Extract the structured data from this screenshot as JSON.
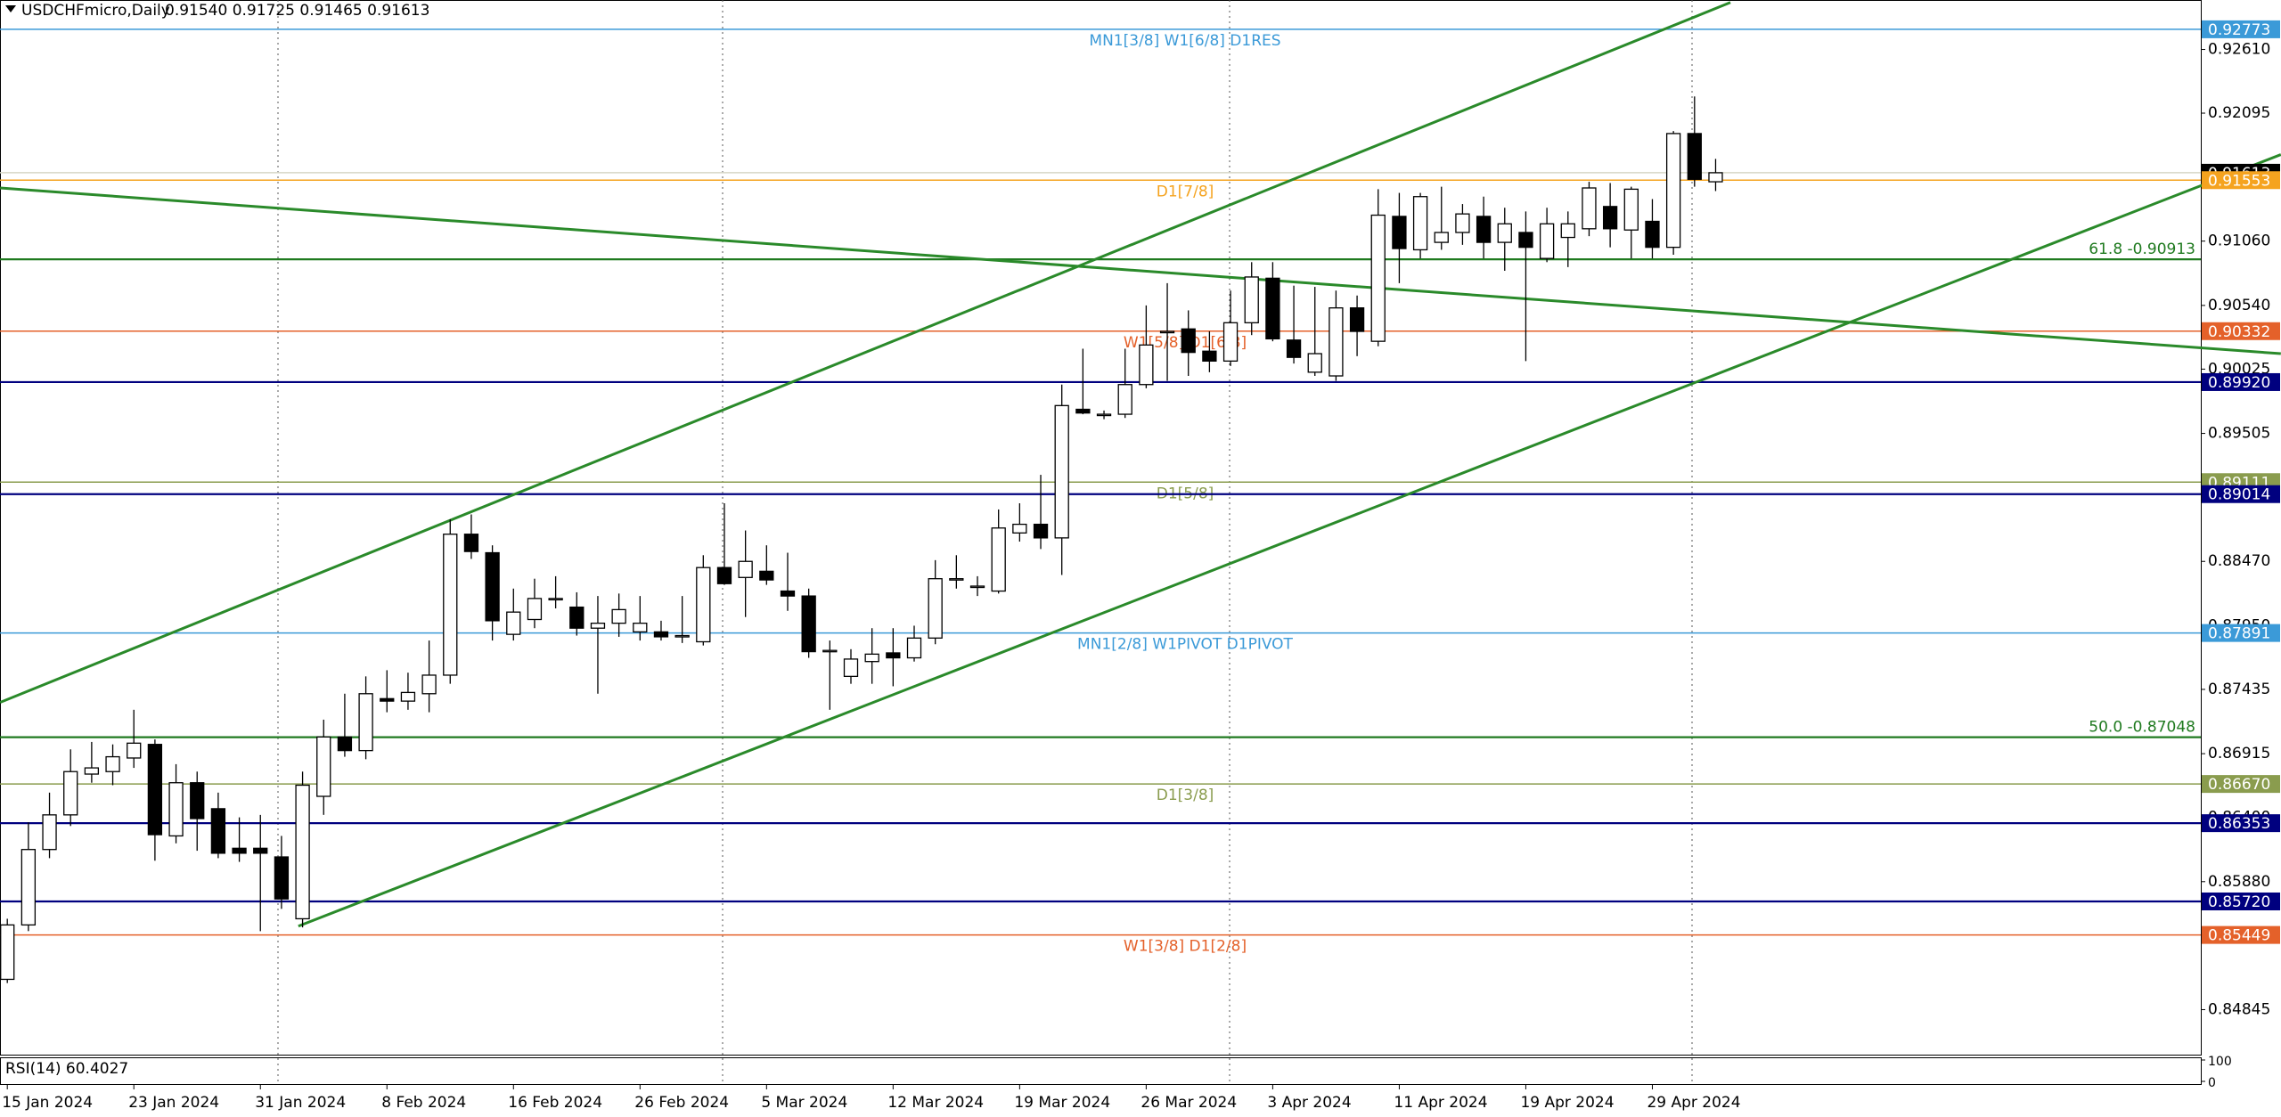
{
  "chart_data": {
    "type": "candlestick",
    "title": "USDCHFmicro,Daily",
    "title_values": "0.91540 0.91725 0.91465 0.91613",
    "categories": [
      "15 Jan 2024",
      null,
      null,
      null,
      null,
      null,
      "23 Jan 2024",
      null,
      null,
      null,
      null,
      null,
      "31 Jan 2024",
      null,
      null,
      null,
      null,
      null,
      "8 Feb 2024",
      null,
      null,
      null,
      null,
      null,
      "16 Feb 2024",
      null,
      null,
      null,
      null,
      null,
      "26 Feb 2024",
      null,
      null,
      null,
      null,
      null,
      "5 Mar 2024",
      null,
      null,
      null,
      null,
      null,
      "12 Mar 2024",
      null,
      null,
      null,
      null,
      null,
      "19 Mar 2024",
      null,
      null,
      null,
      null,
      null,
      "26 Mar 2024",
      null,
      null,
      null,
      null,
      null,
      "3 Apr 2024",
      null,
      null,
      null,
      null,
      null,
      "11 Apr 2024",
      null,
      null,
      null,
      null,
      null,
      "19 Apr 2024",
      null,
      null,
      null,
      null,
      null,
      "29 Apr 2024",
      null,
      null,
      null
    ],
    "open": [
      0.8509,
      0.8553,
      0.8614,
      0.8642,
      0.8675,
      0.8677,
      0.8688,
      0.8699,
      0.8625,
      0.8668,
      0.8647,
      0.8615,
      0.8615,
      0.8608,
      0.8558,
      0.8657,
      0.8705,
      0.8694,
      0.8736,
      0.8734,
      0.874,
      0.8755,
      0.8869,
      0.8854,
      0.8788,
      0.88,
      0.8817,
      0.881,
      0.8793,
      0.8797,
      0.879,
      0.879,
      0.8787,
      0.8782,
      0.8842,
      0.8834,
      0.8839,
      0.8823,
      0.8819,
      0.8775,
      0.8754,
      0.8766,
      0.8773,
      0.8769,
      0.8785,
      0.8833,
      0.8827,
      0.8823,
      0.887,
      0.8877,
      0.8866,
      0.897,
      0.8966,
      0.8966,
      0.899,
      0.9033,
      0.9035,
      0.9017,
      0.9009,
      0.904,
      0.9076,
      0.9026,
      0.9,
      0.8997,
      0.9052,
      0.9025,
      0.9126,
      0.9099,
      0.9105,
      0.9113,
      0.9126,
      0.9105,
      0.9113,
      0.9092,
      0.9109,
      0.9116,
      0.9134,
      0.9115,
      0.9122,
      0.9101,
      0.9193,
      0.9154
    ],
    "high": [
      0.8558,
      0.8636,
      0.866,
      0.8695,
      0.8701,
      0.8699,
      0.8727,
      0.8703,
      0.8683,
      0.8677,
      0.866,
      0.864,
      0.8642,
      0.8625,
      0.8677,
      0.8719,
      0.874,
      0.8754,
      0.8759,
      0.8757,
      0.8783,
      0.8881,
      0.8885,
      0.886,
      0.8825,
      0.8833,
      0.8835,
      0.8822,
      0.8819,
      0.8821,
      0.8819,
      0.8799,
      0.8819,
      0.8852,
      0.8894,
      0.8872,
      0.886,
      0.8854,
      0.8825,
      0.8783,
      0.8776,
      0.8793,
      0.8793,
      0.8795,
      0.8848,
      0.8852,
      0.8835,
      0.8889,
      0.8894,
      0.8917,
      0.899,
      0.9019,
      0.8969,
      0.9019,
      0.9054,
      0.9072,
      0.905,
      0.9033,
      0.9066,
      0.9089,
      0.9089,
      0.907,
      0.9069,
      0.9066,
      0.9062,
      0.9148,
      0.9145,
      0.9145,
      0.915,
      0.9136,
      0.9142,
      0.9133,
      0.913,
      0.9133,
      0.913,
      0.9154,
      0.9153,
      0.915,
      0.914,
      0.9195,
      0.9223,
      0.91725
    ],
    "low": [
      0.8506,
      0.8548,
      0.8607,
      0.8633,
      0.8668,
      0.8666,
      0.868,
      0.8605,
      0.8619,
      0.8613,
      0.8607,
      0.8604,
      0.8548,
      0.8566,
      0.8551,
      0.8642,
      0.8689,
      0.8687,
      0.8725,
      0.8727,
      0.8725,
      0.8748,
      0.8849,
      0.8783,
      0.8783,
      0.8793,
      0.8809,
      0.8787,
      0.874,
      0.8786,
      0.8783,
      0.8783,
      0.8781,
      0.8779,
      0.8828,
      0.8802,
      0.8828,
      0.8807,
      0.8769,
      0.8727,
      0.8748,
      0.8748,
      0.8746,
      0.8766,
      0.878,
      0.8825,
      0.8819,
      0.8821,
      0.8863,
      0.8857,
      0.8836,
      0.8966,
      0.8962,
      0.8963,
      0.8987,
      0.8993,
      0.8997,
      0.9,
      0.9005,
      0.903,
      0.9025,
      0.9007,
      0.8997,
      0.8993,
      0.9013,
      0.9021,
      0.9072,
      0.9092,
      0.9099,
      0.9103,
      0.9092,
      0.9082,
      0.9009,
      0.9089,
      0.9085,
      0.911,
      0.9101,
      0.9092,
      0.9092,
      0.9095,
      0.915,
      0.91465
    ],
    "close": [
      0.8553,
      0.8614,
      0.8642,
      0.8677,
      0.868,
      0.8689,
      0.87,
      0.8626,
      0.8668,
      0.8639,
      0.8611,
      0.8611,
      0.8611,
      0.8574,
      0.8666,
      0.8705,
      0.8694,
      0.874,
      0.8734,
      0.8741,
      0.8755,
      0.8869,
      0.8855,
      0.8799,
      0.8806,
      0.8817,
      0.8817,
      0.8793,
      0.8797,
      0.8808,
      0.8797,
      0.8786,
      0.8787,
      0.8842,
      0.8829,
      0.8847,
      0.8832,
      0.8819,
      0.8774,
      0.8775,
      0.8768,
      0.8772,
      0.8769,
      0.8785,
      0.8833,
      0.8833,
      0.8827,
      0.8874,
      0.8877,
      0.8866,
      0.8973,
      0.8967,
      0.8966,
      0.899,
      0.9022,
      0.9033,
      0.9016,
      0.9009,
      0.904,
      0.9077,
      0.9027,
      0.9012,
      0.9015,
      0.9052,
      0.9033,
      0.9127,
      0.91,
      0.9142,
      0.9113,
      0.9128,
      0.9105,
      0.912,
      0.9101,
      0.912,
      0.912,
      0.9149,
      0.9116,
      0.9148,
      0.9101,
      0.9193,
      0.9156,
      0.91613
    ],
    "ylim": [
      0.84481,
      0.9301
    ],
    "yticks": [
      {
        "value": 0.9261,
        "label": "0.92610"
      },
      0.92095,
      {
        "value": 0.9106,
        "label": "0.91060"
      },
      {
        "value": 0.9054,
        "label": "0.90540"
      },
      0.90025,
      0.89505,
      {
        "value": 0.8847,
        "label": "0.88470"
      },
      {
        "value": 0.8795,
        "label": "0.87950"
      },
      0.87435,
      0.86915,
      {
        "value": 0.864,
        "label": "0.86400"
      },
      {
        "value": 0.8588,
        "label": "0.85880"
      },
      0.84845
    ],
    "levels": [
      {
        "value": 0.92773,
        "label": "0.92773",
        "text": "MN1[3/8] W1[6/8] D1RES",
        "color": "#3b9ad8"
      },
      {
        "value": 0.91613,
        "label": "0.91613",
        "color": "#000000",
        "line_color": "#d6d6c6"
      },
      {
        "value": 0.91553,
        "label": "0.91553",
        "text": "D1[7/8]",
        "color": "#f5a31f"
      },
      {
        "value": 0.90913,
        "text": "61.8 -0.90913",
        "color": "#1f7a1f"
      },
      {
        "value": 0.90332,
        "label": "0.90332",
        "text": "W1[5/8] D1[6/8]",
        "color": "#e4612a"
      },
      {
        "value": 0.8992,
        "label": "0.89920",
        "color": "#00007f"
      },
      {
        "value": 0.89111,
        "label": "0.89111",
        "text": "D1[5/8]",
        "color": "#8a9c4e"
      },
      {
        "value": 0.89014,
        "label": "0.89014",
        "color": "#00007f"
      },
      {
        "value": 0.87891,
        "label": "0.87891",
        "text": "MN1[2/8] W1PIVOT D1PIVOT",
        "color": "#3b9ad8"
      },
      {
        "value": 0.87048,
        "text": "50.0 -0.87048",
        "color": "#1f7a1f"
      },
      {
        "value": 0.8667,
        "label": "0.86670",
        "text": "D1[3/8]",
        "color": "#8a9c4e"
      },
      {
        "value": 0.86353,
        "label": "0.86353",
        "color": "#00007f"
      },
      {
        "value": 0.8572,
        "label": "0.85720",
        "color": "#00007f"
      },
      {
        "value": 0.85449,
        "label": "0.85449",
        "text": "W1[3/8] D1[2/8]",
        "color": "#e4612a"
      }
    ],
    "trend_lines": [
      {
        "x": [
          -0.34,
          81.7
        ],
        "y": [
          0.8733,
          0.9299
        ],
        "color": "#2a8a2a"
      },
      {
        "x": [
          13.8,
          107.8
        ],
        "y": [
          0.8552,
          0.9176
        ],
        "color": "#2a8a2a"
      },
      {
        "x": [
          -0.34,
          107.8
        ],
        "y": [
          0.9149,
          0.9015
        ],
        "color": "#2a8a2a"
      }
    ],
    "rsi": {
      "title": "RSI(14) 60.4027",
      "yticks": [
        100,
        0
      ]
    }
  }
}
